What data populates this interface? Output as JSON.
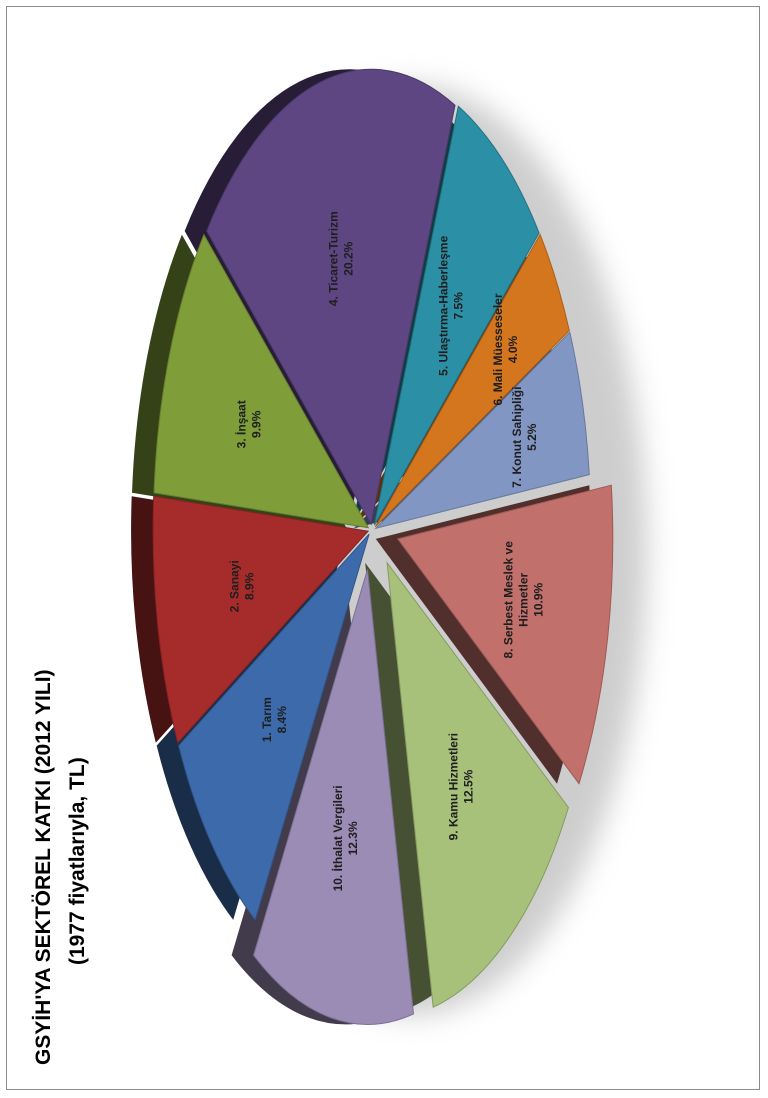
{
  "chart_data": {
    "type": "pie",
    "title": "GSYİH'YA SEKTÖREL KATKI (2012 YILI)",
    "subtitle": "(1977 fiyatlarıyla, TL)",
    "slices": [
      {
        "name": "1. Tarım",
        "value": 8.4,
        "label": "8.4%",
        "color": "#3d6aab"
      },
      {
        "name": "2. Sanayi",
        "value": 8.9,
        "label": "8.9%",
        "color": "#a62c2c"
      },
      {
        "name": "3. İnşaat",
        "value": 9.9,
        "label": "9.9%",
        "color": "#7f9e3a"
      },
      {
        "name": "4. Ticaret-Turizm",
        "value": 20.2,
        "label": "20.2%",
        "color": "#5e4682"
      },
      {
        "name": "5. Ulaştırma-Haberleşme",
        "value": 7.5,
        "label": "7.5%",
        "color": "#2b8fa5"
      },
      {
        "name": "6. Mali Müesseseler",
        "value": 4.0,
        "label": "4.0%",
        "color": "#d4761e"
      },
      {
        "name": "7. Konut Sahipliği",
        "value": 5.2,
        "label": "5.2%",
        "color": "#8196c2"
      },
      {
        "name": "8. Serbest Meslek ve Hizmetler",
        "value": 10.9,
        "label": "10.9%",
        "color": "#c2706c"
      },
      {
        "name": "9. Kamu Hizmetleri",
        "value": 12.5,
        "label": "12.5%",
        "color": "#a7c07a"
      },
      {
        "name": "10. İthalat Vergileri",
        "value": 12.3,
        "label": "12.3%",
        "color": "#9a8cb5"
      }
    ],
    "label_lines": [
      [
        "1. Tarım",
        "8.4%"
      ],
      [
        "2. Sanayi",
        "8.9%"
      ],
      [
        "3. İnşaat",
        "9.9%"
      ],
      [
        "4. Ticaret-Turizm",
        "20.2%"
      ],
      [
        "5. Ulaştırma-Haberleşme",
        "7.5%"
      ],
      [
        "6. Mali Müesseseler",
        "4.0%"
      ],
      [
        "7. Konut Sahipliği",
        "5.2%"
      ],
      [
        "8. Serbest Meslek ve",
        "Hizmetler",
        "10.9%"
      ],
      [
        "9. Kamu Hizmetleri",
        "12.5%"
      ],
      [
        "10. İthalat Vergileri",
        "12.3%"
      ]
    ],
    "exploded_slices": [
      "9. Kamu Hizmetleri",
      "10. İthalat Vergileri",
      "8. Serbest Meslek ve Hizmetler"
    ],
    "legend": "none",
    "orientation": "rotated-90-counterclockwise",
    "style": "3d-exploded"
  }
}
